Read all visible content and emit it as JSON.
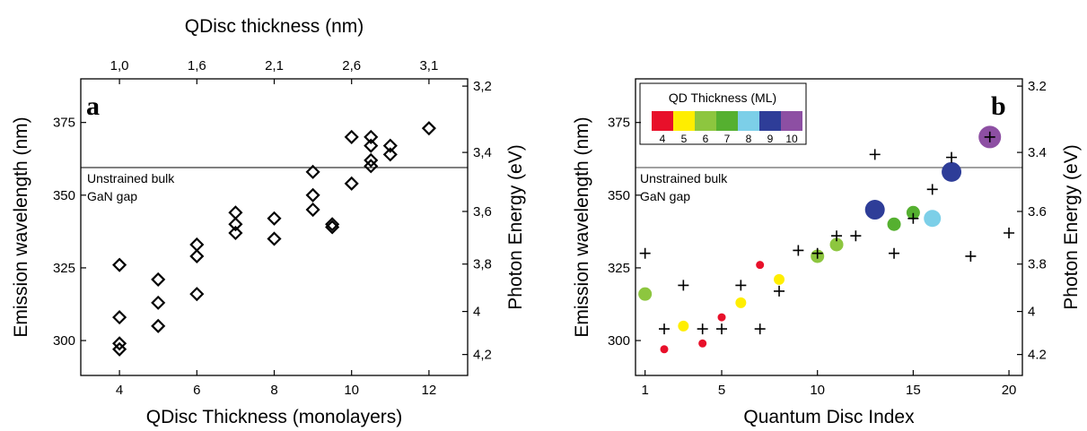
{
  "chart_data": [
    {
      "type": "scatter",
      "panel_label": "a",
      "xlabel": "QDisc Thickness (monolayers)",
      "ylabel": "Emission wavelength (nm)",
      "top_xlabel": "QDisc thickness (nm)",
      "right_ylabel": "Photon Energy (eV)",
      "xlim": [
        3,
        13
      ],
      "ylim": [
        288,
        390
      ],
      "x_ticks": [
        "4",
        "6",
        "8",
        "10",
        "12"
      ],
      "y_ticks": [
        "300",
        "325",
        "350",
        "375"
      ],
      "top_ticks": [
        {
          "at_monolayers": 4,
          "label": "1,0"
        },
        {
          "at_monolayers": 6,
          "label": "1,6"
        },
        {
          "at_monolayers": 8,
          "label": "2,1"
        },
        {
          "at_monolayers": 10,
          "label": "2,6"
        },
        {
          "at_monolayers": 12,
          "label": "3,1"
        }
      ],
      "right_ticks": [
        {
          "at_wavelength": 387.5,
          "label": "3,2"
        },
        {
          "at_wavelength": 364.7,
          "label": "3,4"
        },
        {
          "at_wavelength": 344.4,
          "label": "3,6"
        },
        {
          "at_wavelength": 326.3,
          "label": "3,8"
        },
        {
          "at_wavelength": 310.0,
          "label": "4"
        },
        {
          "at_wavelength": 295.2,
          "label": "4,2"
        }
      ],
      "reference_line": {
        "y": 359.5,
        "label_lines": [
          "Unstrained bulk",
          "GaN gap"
        ]
      },
      "marker": "open-diamond",
      "points": [
        {
          "x": 4,
          "y": 326
        },
        {
          "x": 4,
          "y": 308
        },
        {
          "x": 4,
          "y": 299
        },
        {
          "x": 4,
          "y": 297
        },
        {
          "x": 5,
          "y": 321
        },
        {
          "x": 5,
          "y": 313
        },
        {
          "x": 5,
          "y": 305
        },
        {
          "x": 6,
          "y": 333
        },
        {
          "x": 6,
          "y": 329
        },
        {
          "x": 6,
          "y": 316
        },
        {
          "x": 7,
          "y": 344
        },
        {
          "x": 7,
          "y": 340
        },
        {
          "x": 7,
          "y": 337
        },
        {
          "x": 8,
          "y": 342
        },
        {
          "x": 8,
          "y": 335
        },
        {
          "x": 9,
          "y": 358
        },
        {
          "x": 9,
          "y": 350
        },
        {
          "x": 9,
          "y": 345
        },
        {
          "x": 9.5,
          "y": 340
        },
        {
          "x": 9.5,
          "y": 339
        },
        {
          "x": 10,
          "y": 370
        },
        {
          "x": 10,
          "y": 354
        },
        {
          "x": 10.5,
          "y": 370
        },
        {
          "x": 10.5,
          "y": 367
        },
        {
          "x": 10.5,
          "y": 362
        },
        {
          "x": 10.5,
          "y": 360
        },
        {
          "x": 11,
          "y": 367
        },
        {
          "x": 11,
          "y": 364
        },
        {
          "x": 12,
          "y": 373
        }
      ]
    },
    {
      "type": "scatter",
      "panel_label": "b",
      "xlabel": "Quantum Disc Index",
      "ylabel": "Emission wavelength (nm)",
      "right_ylabel": "Photon Energy (eV)",
      "xlim": [
        0.5,
        20.7
      ],
      "ylim": [
        288,
        390
      ],
      "x_ticks": [
        "1",
        "5",
        "10",
        "15",
        "20"
      ],
      "y_ticks": [
        "300",
        "325",
        "350",
        "375"
      ],
      "right_ticks": [
        {
          "at_wavelength": 387.5,
          "label": "3.2"
        },
        {
          "at_wavelength": 364.7,
          "label": "3.4"
        },
        {
          "at_wavelength": 344.4,
          "label": "3.6"
        },
        {
          "at_wavelength": 326.3,
          "label": "3.8"
        },
        {
          "at_wavelength": 310.0,
          "label": "4"
        },
        {
          "at_wavelength": 295.2,
          "label": "4.2"
        }
      ],
      "reference_line": {
        "y": 359.5,
        "label_lines": [
          "Unstrained bulk",
          "GaN gap"
        ]
      },
      "legend": {
        "title": "QD Thickness (ML)",
        "position": "top-left",
        "entries": [
          {
            "label": "4",
            "color": "#e8102a"
          },
          {
            "label": "5",
            "color": "#ffee00"
          },
          {
            "label": "6",
            "color": "#8dc63f"
          },
          {
            "label": "7",
            "color": "#55b030"
          },
          {
            "label": "8",
            "color": "#7ccfe8"
          },
          {
            "label": "9",
            "color": "#2e3d98"
          },
          {
            "label": "10",
            "color": "#8d4fa3"
          }
        ]
      },
      "colored_points": [
        {
          "x": 1,
          "y": 316,
          "ml": 6,
          "color": "#8dc63f"
        },
        {
          "x": 2,
          "y": 297,
          "ml": 4,
          "color": "#e8102a"
        },
        {
          "x": 3,
          "y": 305,
          "ml": 5,
          "color": "#ffee00"
        },
        {
          "x": 4,
          "y": 299,
          "ml": 4,
          "color": "#e8102a"
        },
        {
          "x": 5,
          "y": 308,
          "ml": 4,
          "color": "#e8102a"
        },
        {
          "x": 6,
          "y": 313,
          "ml": 5,
          "color": "#ffee00"
        },
        {
          "x": 7,
          "y": 326,
          "ml": 4,
          "color": "#e8102a"
        },
        {
          "x": 8,
          "y": 321,
          "ml": 5,
          "color": "#ffee00"
        },
        {
          "x": 10,
          "y": 329,
          "ml": 6,
          "color": "#8dc63f"
        },
        {
          "x": 11,
          "y": 333,
          "ml": 6,
          "color": "#8dc63f"
        },
        {
          "x": 13,
          "y": 345,
          "ml": 9,
          "color": "#2e3d98"
        },
        {
          "x": 14,
          "y": 340,
          "ml": 7,
          "color": "#55b030"
        },
        {
          "x": 15,
          "y": 344,
          "ml": 7,
          "color": "#55b030"
        },
        {
          "x": 16,
          "y": 342,
          "ml": 8,
          "color": "#7ccfe8"
        },
        {
          "x": 17,
          "y": 358,
          "ml": 9,
          "color": "#2e3d98"
        },
        {
          "x": 19,
          "y": 370,
          "ml": 10,
          "color": "#8d4fa3"
        }
      ],
      "cross_points": [
        {
          "x": 1,
          "y": 330
        },
        {
          "x": 2,
          "y": 304
        },
        {
          "x": 3,
          "y": 319
        },
        {
          "x": 4,
          "y": 304
        },
        {
          "x": 5,
          "y": 304
        },
        {
          "x": 6,
          "y": 319
        },
        {
          "x": 7,
          "y": 304
        },
        {
          "x": 8,
          "y": 317
        },
        {
          "x": 9,
          "y": 331
        },
        {
          "x": 10,
          "y": 330
        },
        {
          "x": 11,
          "y": 336
        },
        {
          "x": 12,
          "y": 336
        },
        {
          "x": 13,
          "y": 364
        },
        {
          "x": 14,
          "y": 330
        },
        {
          "x": 15,
          "y": 342
        },
        {
          "x": 16,
          "y": 352
        },
        {
          "x": 17,
          "y": 363
        },
        {
          "x": 18,
          "y": 329
        },
        {
          "x": 19,
          "y": 370
        },
        {
          "x": 20,
          "y": 337
        }
      ]
    }
  ]
}
